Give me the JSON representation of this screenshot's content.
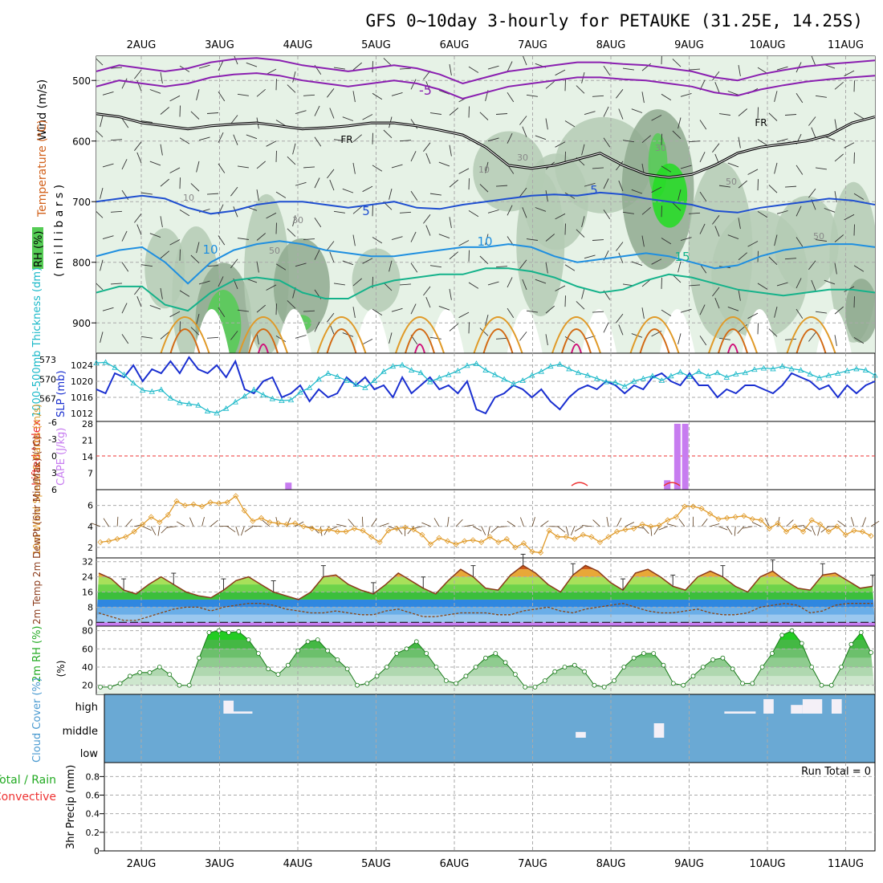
{
  "chart_data": {
    "type": "meteogram",
    "title": "GFS 0~10day 3-hourly for PETAUKE (31.25E, 14.25S)",
    "date_labels": [
      "2AUG",
      "3AUG",
      "4AUG",
      "5AUG",
      "6AUG",
      "7AUG",
      "8AUG",
      "9AUG",
      "10AUG",
      "11AUG"
    ],
    "colors": {
      "rh_light": "#e6f2e6",
      "rh_mid": "#b4cbb4",
      "rh_dark": "#8faa8f",
      "rh_green": "#55cc55",
      "rh_bright": "#22dd22",
      "temp_purple": "#8a1fb0",
      "temp_blue": "#1f4fd0",
      "temp_lightblue": "#1f8fe0",
      "temp_teal": "#14b28a",
      "temp_orange": "#e09a28",
      "temp_dark_orange": "#d26a14",
      "temp_magenta": "#d0107a",
      "slp": "#1a2fd0",
      "thickness": "#18b8c8",
      "cape": "#c77cf0",
      "lifted": "#ee3333",
      "wind10": "#e09a28",
      "temp2m": "#8b3a1a",
      "dewpt": "#8b4513",
      "cloud": "#6aa9d4"
    },
    "upper_panel": {
      "ylabel_wind": "Wind (m/s)",
      "ylabel_temp": "Temperature (°C)",
      "ylabel_pressure": "( m i l l i b a r s )",
      "ylabel_rh": "RH (%)",
      "pressure_ticks": [
        "500",
        "600",
        "700",
        "800",
        "900"
      ],
      "contour_labels": [
        "-5",
        "FR",
        "FR",
        "5",
        "5",
        "10",
        "10",
        "15",
        "10",
        "30",
        "30",
        "50",
        "50",
        "30",
        "10",
        "50"
      ],
      "isotherm_m5": [
        510,
        500,
        505,
        510,
        505,
        495,
        490,
        488,
        492,
        500,
        505,
        510,
        505,
        500,
        505,
        515,
        530,
        520,
        510,
        505,
        500,
        495,
        495,
        498,
        500,
        505,
        510,
        520,
        525,
        515,
        508,
        502,
        498,
        495,
        492
      ],
      "freezing_level": [
        555,
        560,
        570,
        575,
        580,
        575,
        572,
        570,
        575,
        580,
        578,
        575,
        570,
        570,
        575,
        582,
        590,
        610,
        640,
        645,
        640,
        630,
        620,
        640,
        655,
        660,
        655,
        640,
        620,
        610,
        605,
        600,
        590,
        570,
        560
      ],
      "isotherm_5": [
        700,
        695,
        690,
        695,
        710,
        720,
        715,
        705,
        700,
        700,
        705,
        710,
        705,
        700,
        710,
        712,
        705,
        700,
        695,
        690,
        688,
        690,
        685,
        688,
        695,
        700,
        705,
        715,
        718,
        710,
        705,
        700,
        695,
        698,
        705
      ],
      "isotherm_10": [
        790,
        780,
        775,
        800,
        835,
        800,
        780,
        770,
        765,
        770,
        780,
        785,
        790,
        790,
        785,
        780,
        775,
        775,
        770,
        775,
        790,
        800,
        795,
        790,
        785,
        790,
        800,
        810,
        805,
        790,
        780,
        775,
        770,
        770,
        775
      ],
      "isotherm_15": [
        850,
        840,
        840,
        870,
        880,
        850,
        830,
        825,
        830,
        850,
        860,
        860,
        840,
        830,
        825,
        820,
        820,
        810,
        810,
        815,
        825,
        840,
        850,
        845,
        830,
        820,
        825,
        835,
        845,
        850,
        855,
        850,
        845,
        845,
        850
      ]
    },
    "thickness_slp": {
      "slp_label": "SLP (mb)",
      "thickness_label": "1000-500mb Thickness (dm)",
      "slp_ticks": [
        "1012",
        "1016",
        "1020",
        "1024"
      ],
      "thickness_ticks": [
        "567",
        "570",
        "573"
      ],
      "slp": [
        1018,
        1017,
        1022,
        1021,
        1024,
        1020,
        1023,
        1022,
        1025,
        1022,
        1026,
        1023,
        1022,
        1024,
        1021,
        1025,
        1018,
        1017,
        1020,
        1021,
        1016,
        1017,
        1019,
        1015,
        1018,
        1016,
        1017,
        1021,
        1019,
        1021,
        1018,
        1019,
        1016,
        1021,
        1017,
        1019,
        1021,
        1018,
        1019,
        1017,
        1020,
        1013,
        1012,
        1016,
        1017,
        1019,
        1018,
        1016,
        1018,
        1015,
        1013,
        1016,
        1018,
        1019,
        1018,
        1020,
        1019,
        1017,
        1019,
        1018,
        1021,
        1022,
        1020,
        1019,
        1022,
        1019,
        1019,
        1016,
        1018,
        1017,
        1019,
        1019,
        1018,
        1017,
        1019,
        1022,
        1021,
        1020,
        1018,
        1019,
        1016,
        1019,
        1017,
        1019,
        1020
      ],
      "thickness": [
        572.5,
        572.6,
        571.8,
        570.7,
        569.4,
        568.3,
        568.1,
        568.4,
        567.1,
        566.4,
        566.2,
        566.0,
        565.1,
        564.8,
        565.5,
        566.5,
        567.4,
        568.4,
        567.6,
        567.0,
        566.7,
        566.8,
        568.0,
        568.7,
        570.0,
        570.9,
        570.4,
        569.8,
        569.2,
        568.7,
        569.8,
        571.2,
        572.0,
        572.2,
        571.4,
        571.0,
        569.6,
        570.2,
        570.7,
        571.3,
        572.1,
        572.4,
        571.4,
        570.7,
        570.0,
        569.3,
        569.8,
        570.6,
        571.2,
        572.0,
        572.3,
        571.6,
        571.0,
        570.6,
        570.1,
        569.6,
        569.5,
        568.9,
        569.7,
        570.1,
        570.5,
        569.8,
        570.5,
        571.1,
        570.4,
        571.2,
        570.5,
        571.0,
        570.3,
        570.8,
        571.0,
        571.5,
        571.7,
        571.6,
        572.0,
        571.6,
        571.4,
        570.8,
        570.2,
        570.6,
        570.9,
        571.3,
        571.6,
        571.4,
        570.6
      ]
    },
    "cape_li": {
      "li_label": "Lifted Index",
      "cape_label": "CAPE (J/kg)",
      "li_ticks": [
        "-6",
        "-3",
        "0",
        "3",
        "6"
      ],
      "cape_ticks": [
        "7",
        "14",
        "21",
        "28"
      ],
      "cape_bars": [
        {
          "date_frac": 1.88,
          "value": 3
        },
        {
          "date_frac": 6.72,
          "value": 4
        },
        {
          "date_frac": 6.85,
          "value": 28
        },
        {
          "date_frac": 6.95,
          "value": 28
        }
      ]
    },
    "wind10m": {
      "label": "10m Wind Speed & Barbs (m/s)",
      "ticks": [
        "2",
        "4",
        "6"
      ],
      "speed": [
        2.5,
        2.6,
        2.8,
        3.0,
        3.5,
        4.2,
        4.9,
        4.4,
        5.1,
        6.4,
        6.0,
        6.1,
        5.9,
        6.3,
        6.2,
        6.3,
        6.9,
        5.5,
        4.5,
        4.8,
        4.4,
        4.3,
        4.2,
        4.3,
        4.0,
        3.8,
        3.6,
        3.7,
        3.5,
        3.5,
        3.8,
        3.6,
        3.0,
        2.5,
        3.6,
        3.8,
        3.9,
        3.7,
        3.2,
        2.3,
        2.9,
        2.6,
        2.3,
        2.6,
        2.7,
        2.5,
        3.0,
        2.5,
        2.8,
        2.0,
        2.4,
        1.6,
        1.5,
        3.6,
        3.0,
        3.0,
        2.8,
        3.2,
        3.0,
        2.5,
        3.0,
        3.5,
        3.7,
        3.8,
        4.2,
        4.0,
        4.1,
        4.6,
        4.9,
        5.9,
        5.9,
        5.7,
        5.2,
        4.7,
        4.8,
        4.9,
        5.0,
        4.7,
        4.6,
        3.8,
        4.3,
        3.5,
        4.0,
        3.5,
        4.6,
        4.2,
        3.5,
        4.0,
        3.2,
        3.6,
        3.5,
        3.1
      ]
    },
    "temp2m": {
      "label": "2m Temp 2m DewPt (6hr Min/Max) (°C)",
      "ticks": [
        "0",
        "8",
        "16",
        "24",
        "32"
      ],
      "temp": [
        26,
        23,
        17,
        15,
        20,
        24,
        20,
        16,
        14,
        13,
        17,
        22,
        24,
        20,
        16,
        14,
        12,
        16,
        24,
        25,
        20,
        17,
        15,
        20,
        26,
        22,
        18,
        15,
        22,
        28,
        24,
        18,
        17,
        25,
        30,
        26,
        20,
        16,
        25,
        30,
        27,
        21,
        17,
        26,
        28,
        24,
        19,
        17,
        24,
        27,
        24,
        19,
        16,
        24,
        27,
        22,
        18,
        17,
        25,
        26,
        22,
        18,
        19
      ],
      "dewpt": [
        5,
        3,
        1,
        1,
        3,
        5,
        7,
        8,
        8,
        6,
        8,
        9,
        10,
        10,
        9,
        7,
        6,
        5,
        5,
        6,
        5,
        4,
        4,
        6,
        7,
        5,
        3,
        3,
        4,
        5,
        5,
        5,
        4,
        4,
        6,
        7,
        8,
        6,
        5,
        7,
        8,
        9,
        10,
        8,
        6,
        5,
        5,
        6,
        7,
        5,
        4,
        4,
        5,
        8,
        9,
        10,
        9,
        5,
        6,
        9,
        10,
        10,
        10
      ]
    },
    "rh2m": {
      "label": "2m RH (%)",
      "ticks": [
        "20",
        "40",
        "60",
        "80"
      ],
      "values": [
        18,
        18,
        22,
        30,
        34,
        34,
        40,
        32,
        20,
        20,
        50,
        78,
        80,
        78,
        79,
        70,
        55,
        38,
        32,
        42,
        58,
        68,
        70,
        58,
        48,
        38,
        20,
        22,
        30,
        40,
        55,
        60,
        68,
        55,
        40,
        25,
        22,
        30,
        40,
        50,
        55,
        45,
        32,
        18,
        18,
        25,
        35,
        40,
        42,
        35,
        20,
        18,
        25,
        40,
        50,
        55,
        55,
        42,
        22,
        20,
        30,
        40,
        48,
        50,
        38,
        22,
        22,
        40,
        55,
        75,
        80,
        66,
        40,
        20,
        20,
        40,
        65,
        78,
        56
      ]
    },
    "cloud": {
      "label": "Cloud Cover (%)",
      "levels": [
        "high",
        "middle",
        "low"
      ],
      "gaps": [
        {
          "level": "high",
          "start_frac": 1.05,
          "end_frac": 1.18,
          "amount": 0.9
        },
        {
          "level": "high",
          "start_frac": 1.15,
          "end_frac": 1.42,
          "amount": 0.15
        },
        {
          "level": "middle",
          "start_frac": 5.55,
          "end_frac": 5.68,
          "amount": 0.4
        },
        {
          "level": "middle",
          "start_frac": 6.55,
          "end_frac": 6.68,
          "amount": 1.0
        },
        {
          "level": "high",
          "start_frac": 7.45,
          "end_frac": 7.85,
          "amount": 0.15
        },
        {
          "level": "high",
          "start_frac": 7.95,
          "end_frac": 8.08,
          "amount": 1.0
        },
        {
          "level": "high",
          "start_frac": 8.3,
          "end_frac": 8.45,
          "amount": 0.6
        },
        {
          "level": "high",
          "start_frac": 8.45,
          "end_frac": 8.7,
          "amount": 1.0
        },
        {
          "level": "high",
          "start_frac": 8.82,
          "end_frac": 8.95,
          "amount": 1.0
        }
      ]
    },
    "precip": {
      "label": "3hr Precip (mm)",
      "total_label": "Total / Rain",
      "convective_label": "Convective",
      "ticks": [
        "0",
        "0.2",
        "0.4",
        "0.6",
        "0.8"
      ],
      "run_total": "Run Total = 0"
    }
  }
}
